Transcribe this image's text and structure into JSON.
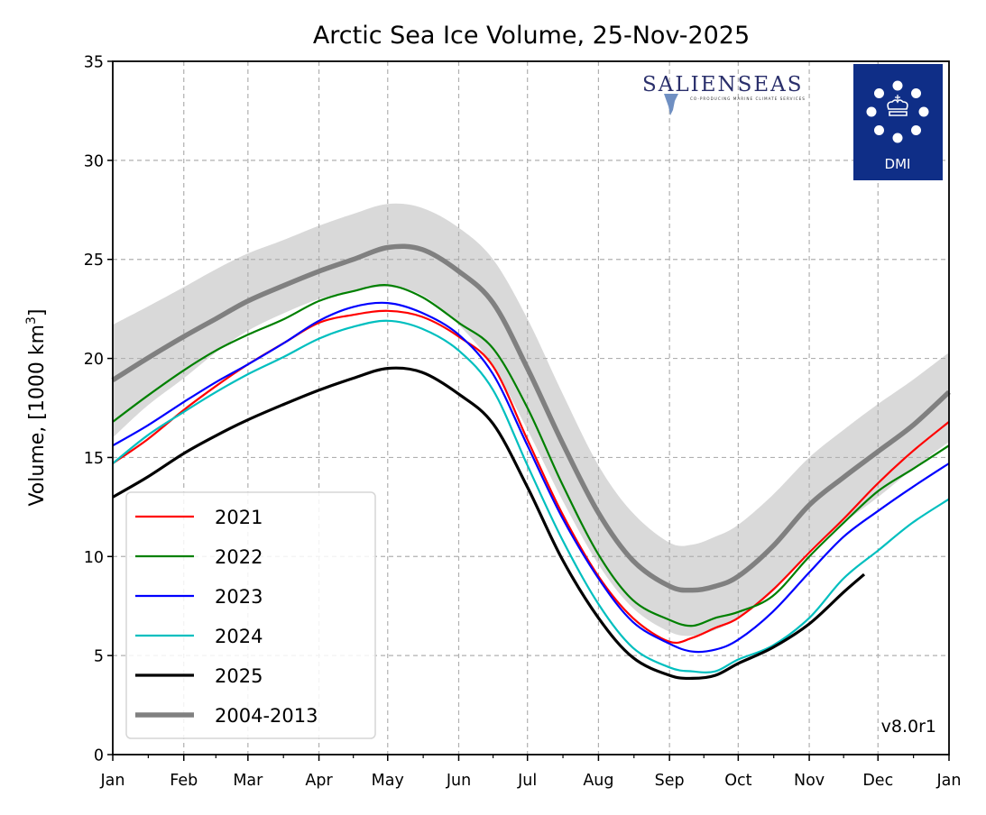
{
  "chart_data": {
    "type": "line",
    "title": "Arctic Sea Ice Volume, 25-Nov-2025",
    "xlabel": "",
    "ylabel": "Volume, [1000 km³]",
    "ylabel_parts": {
      "main": "Volume, [1000 km",
      "sup": "3",
      "end": "]"
    },
    "ylim": [
      0,
      35
    ],
    "xlim_days": [
      0,
      365
    ],
    "grid": true,
    "legend_position": "lower-left",
    "yticks": [
      0,
      5,
      10,
      15,
      20,
      25,
      30,
      35
    ],
    "xticks": [
      {
        "label": "Jan",
        "day": 0
      },
      {
        "label": "Feb",
        "day": 31
      },
      {
        "label": "Mar",
        "day": 59
      },
      {
        "label": "Apr",
        "day": 90
      },
      {
        "label": "May",
        "day": 120
      },
      {
        "label": "Jun",
        "day": 151
      },
      {
        "label": "Jul",
        "day": 181
      },
      {
        "label": "Aug",
        "day": 212
      },
      {
        "label": "Sep",
        "day": 243
      },
      {
        "label": "Oct",
        "day": 273
      },
      {
        "label": "Nov",
        "day": 304
      },
      {
        "label": "Dec",
        "day": 334
      },
      {
        "label": "Jan",
        "day": 365
      }
    ],
    "x_days": [
      0,
      15,
      31,
      45,
      59,
      75,
      90,
      105,
      120,
      135,
      151,
      166,
      181,
      196,
      212,
      227,
      243,
      253,
      263,
      273,
      288,
      304,
      319,
      334,
      349,
      365
    ],
    "band": {
      "name": "2004-2013 range",
      "color": "#d9d9d9",
      "upper": [
        21.7,
        22.6,
        23.6,
        24.5,
        25.3,
        26.0,
        26.7,
        27.3,
        27.8,
        27.6,
        26.6,
        25.0,
        22.0,
        18.3,
        14.6,
        12.2,
        10.7,
        10.6,
        11.0,
        11.6,
        13.1,
        15.0,
        16.4,
        17.7,
        18.9,
        20.3
      ],
      "lower": [
        16.0,
        17.6,
        19.0,
        20.3,
        21.4,
        22.3,
        23.0,
        23.4,
        23.6,
        23.2,
        21.7,
        19.6,
        16.4,
        12.9,
        9.6,
        7.4,
        6.2,
        6.0,
        6.3,
        6.9,
        8.2,
        10.3,
        11.7,
        13.0,
        14.4,
        15.8
      ]
    },
    "series": [
      {
        "name": "2021",
        "color": "#ff0000",
        "width": 2.2,
        "values": [
          14.7,
          15.9,
          17.4,
          18.6,
          19.7,
          20.8,
          21.8,
          22.2,
          22.4,
          22.1,
          21.1,
          19.6,
          15.9,
          12.2,
          9.0,
          6.9,
          5.7,
          5.9,
          6.4,
          6.9,
          8.3,
          10.2,
          11.9,
          13.7,
          15.3,
          16.8
        ]
      },
      {
        "name": "2022",
        "color": "#008000",
        "width": 2.2,
        "values": [
          16.8,
          18.1,
          19.4,
          20.4,
          21.2,
          22.0,
          22.9,
          23.4,
          23.7,
          23.1,
          21.8,
          20.5,
          17.5,
          13.7,
          10.1,
          7.8,
          6.8,
          6.5,
          6.9,
          7.2,
          8.0,
          10.0,
          11.7,
          13.3,
          14.4,
          15.6
        ]
      },
      {
        "name": "2023",
        "color": "#0000ff",
        "width": 2.2,
        "values": [
          15.6,
          16.6,
          17.8,
          18.8,
          19.7,
          20.8,
          21.9,
          22.6,
          22.8,
          22.3,
          21.2,
          19.2,
          15.6,
          12.0,
          8.9,
          6.7,
          5.6,
          5.2,
          5.3,
          5.8,
          7.2,
          9.2,
          11.0,
          12.3,
          13.5,
          14.7
        ]
      },
      {
        "name": "2024",
        "color": "#00bfbf",
        "width": 2.2,
        "values": [
          14.7,
          16.1,
          17.3,
          18.3,
          19.2,
          20.1,
          21.0,
          21.6,
          21.9,
          21.5,
          20.4,
          18.4,
          14.6,
          10.9,
          7.6,
          5.4,
          4.4,
          4.2,
          4.2,
          4.8,
          5.5,
          6.9,
          8.9,
          10.3,
          11.7,
          12.9
        ]
      },
      {
        "name": "2025",
        "color": "#000000",
        "width": 3.2,
        "x_days": [
          0,
          15,
          31,
          45,
          59,
          75,
          90,
          105,
          120,
          135,
          151,
          166,
          181,
          196,
          212,
          227,
          243,
          253,
          263,
          273,
          288,
          304,
          319,
          328
        ],
        "values": [
          13.0,
          14.0,
          15.2,
          16.1,
          16.9,
          17.7,
          18.4,
          19.0,
          19.5,
          19.3,
          18.2,
          16.7,
          13.5,
          9.9,
          6.9,
          4.9,
          4.0,
          3.85,
          4.0,
          4.6,
          5.4,
          6.6,
          8.2,
          9.1
        ]
      },
      {
        "name": "2004-2013",
        "color": "#808080",
        "width": 5.5,
        "values": [
          18.9,
          20.0,
          21.1,
          22.0,
          22.9,
          23.7,
          24.4,
          25.0,
          25.6,
          25.5,
          24.4,
          22.8,
          19.5,
          15.8,
          12.2,
          9.8,
          8.5,
          8.3,
          8.5,
          9.0,
          10.5,
          12.6,
          14.0,
          15.3,
          16.6,
          18.3
        ]
      }
    ],
    "legend": [
      "2021",
      "2022",
      "2023",
      "2024",
      "2025",
      "2004-2013"
    ],
    "annotations": [
      "v8.0r1"
    ]
  },
  "logos": {
    "salienseas": {
      "name": "SALIENSEAS",
      "tagline": "CO-PRODUCING MARINE CLIMATE SERVICES",
      "color": "#2a2f6b"
    },
    "dmi": {
      "name": "DMI",
      "color": "#0f2e87"
    }
  }
}
